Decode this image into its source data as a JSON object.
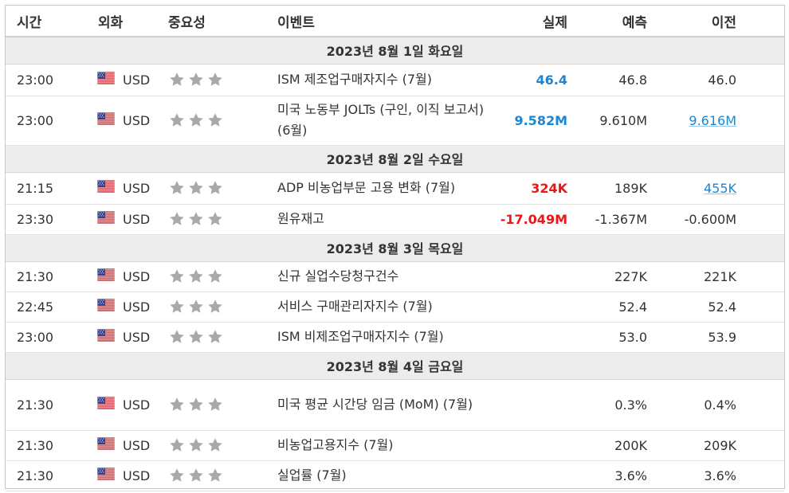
{
  "header": {
    "time": "시간",
    "currency": "외화",
    "importance": "중요성",
    "event": "이벤트",
    "actual": "실제",
    "forecast": "예측",
    "previous": "이전"
  },
  "colors": {
    "positive": "#1a86d6",
    "negative": "#e81818",
    "star": "#a9a9a9"
  },
  "rows": [
    {
      "type": "date",
      "label": "2023년 8월 1일 화요일"
    },
    {
      "type": "event",
      "time": "23:00",
      "currency": "USD",
      "flag": "us-flag-icon",
      "stars": 3,
      "event": "ISM 제조업구매자지수 (7월)",
      "actual": "46.4",
      "actual_color": "blue",
      "forecast": "46.8",
      "previous": "46.0",
      "previous_link": false
    },
    {
      "type": "event",
      "time": "23:00",
      "currency": "USD",
      "flag": "us-flag-icon",
      "stars": 3,
      "event": "미국 노동부 JOLTs (구인, 이직 보고서) (6월)",
      "actual": "9.582M",
      "actual_color": "blue",
      "forecast": "9.610M",
      "previous": "9.616M",
      "previous_link": true
    },
    {
      "type": "date",
      "label": "2023년 8월 2일 수요일"
    },
    {
      "type": "event",
      "time": "21:15",
      "currency": "USD",
      "flag": "us-flag-icon",
      "stars": 3,
      "event": "ADP 비농업부문 고용 변화 (7월)",
      "actual": "324K",
      "actual_color": "red",
      "forecast": "189K",
      "previous": "455K",
      "previous_link": true
    },
    {
      "type": "event",
      "time": "23:30",
      "currency": "USD",
      "flag": "us-flag-icon",
      "stars": 3,
      "event": "원유재고",
      "actual": "-17.049M",
      "actual_color": "red",
      "forecast": "-1.367M",
      "previous": "-0.600M",
      "previous_link": false
    },
    {
      "type": "date",
      "label": "2023년 8월 3일 목요일"
    },
    {
      "type": "event",
      "time": "21:30",
      "currency": "USD",
      "flag": "us-flag-icon",
      "stars": 3,
      "event": "신규 실업수당청구건수",
      "actual": "",
      "actual_color": "",
      "forecast": "227K",
      "previous": "221K",
      "previous_link": false
    },
    {
      "type": "event",
      "time": "22:45",
      "currency": "USD",
      "flag": "us-flag-icon",
      "stars": 3,
      "event": "서비스 구매관리자지수 (7월)",
      "actual": "",
      "actual_color": "",
      "forecast": "52.4",
      "previous": "52.4",
      "previous_link": false
    },
    {
      "type": "event",
      "time": "23:00",
      "currency": "USD",
      "flag": "us-flag-icon",
      "stars": 3,
      "event": "ISM 비제조업구매자지수 (7월)",
      "actual": "",
      "actual_color": "",
      "forecast": "53.0",
      "previous": "53.9",
      "previous_link": false
    },
    {
      "type": "date",
      "label": "2023년 8월 4일 금요일"
    },
    {
      "type": "event",
      "time": "21:30",
      "currency": "USD",
      "flag": "us-flag-icon",
      "stars": 3,
      "event": "미국 평균 시간당 임금 (MoM) (7월)",
      "actual": "",
      "actual_color": "",
      "forecast": "0.3%",
      "previous": "0.4%",
      "previous_link": false
    },
    {
      "type": "event",
      "time": "21:30",
      "currency": "USD",
      "flag": "us-flag-icon",
      "stars": 3,
      "event": "비농업고용지수 (7월)",
      "actual": "",
      "actual_color": "",
      "forecast": "200K",
      "previous": "209K",
      "previous_link": false
    },
    {
      "type": "event",
      "time": "21:30",
      "currency": "USD",
      "flag": "us-flag-icon",
      "stars": 3,
      "event": "실업률 (7월)",
      "actual": "",
      "actual_color": "",
      "forecast": "3.6%",
      "previous": "3.6%",
      "previous_link": false
    }
  ]
}
